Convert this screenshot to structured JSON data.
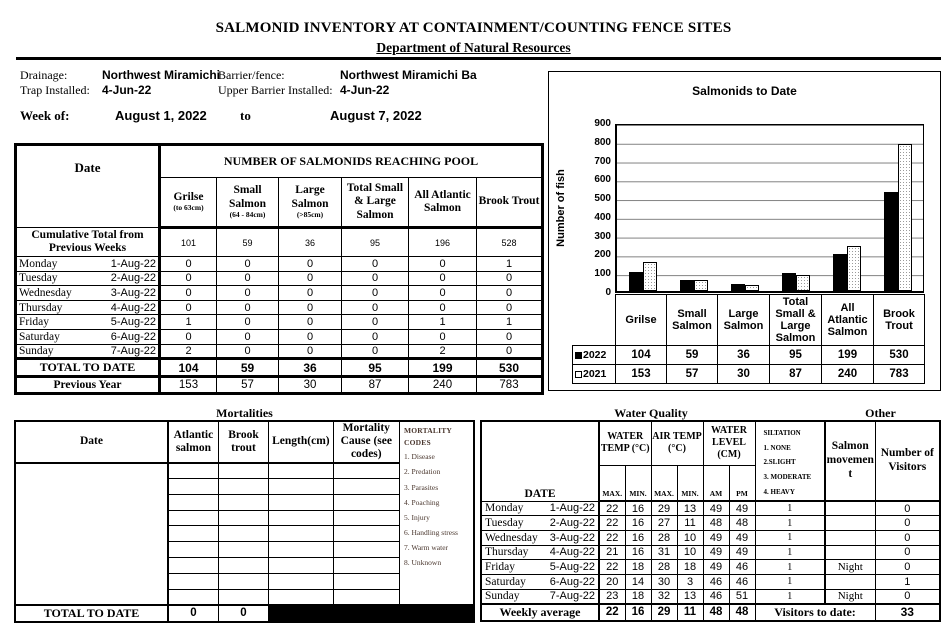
{
  "header": {
    "title": "SALMONID INVENTORY AT CONTAINMENT/COUNTING FENCE SITES",
    "subtitle": "Department of Natural Resources"
  },
  "info": {
    "drainage_label": "Drainage:",
    "drainage_value": "Northwest Miramichi",
    "barrier_label": "Barrier/fence:",
    "barrier_value": "Northwest Miramichi Ba",
    "trap_label": "Trap Installed:",
    "trap_value": "4-Jun-22",
    "upper_barrier_label": "Upper Barrier Installed:",
    "upper_barrier_value": "4-Jun-22",
    "week_label": "Week of:",
    "week_start": "August 1, 2022",
    "week_to": "to",
    "week_end": "August 7, 2022"
  },
  "pool_table": {
    "date_header": "Date",
    "span_header": "NUMBER OF SALMONIDS REACHING POOL",
    "columns": [
      {
        "name": "Grilse",
        "sub": "(to 63cm)"
      },
      {
        "name": "Small Salmon",
        "sub": "(64 - 84cm)"
      },
      {
        "name": "Large Salmon",
        "sub": "(>85cm)"
      },
      {
        "name": "Total Small & Large Salmon",
        "sub": ""
      },
      {
        "name": "All Atlantic Salmon",
        "sub": ""
      },
      {
        "name": "Brook Trout",
        "sub": ""
      }
    ],
    "cumulative_label": "Cumulative Total from Previous Weeks",
    "cumulative_values": [
      "101",
      "59",
      "36",
      "95",
      "196",
      "528"
    ],
    "days": [
      {
        "day": "Monday",
        "date": "1-Aug-22",
        "values": [
          "0",
          "0",
          "0",
          "0",
          "0",
          "1"
        ]
      },
      {
        "day": "Tuesday",
        "date": "2-Aug-22",
        "values": [
          "0",
          "0",
          "0",
          "0",
          "0",
          "0"
        ]
      },
      {
        "day": "Wednesday",
        "date": "3-Aug-22",
        "values": [
          "0",
          "0",
          "0",
          "0",
          "0",
          "0"
        ]
      },
      {
        "day": "Thursday",
        "date": "4-Aug-22",
        "values": [
          "0",
          "0",
          "0",
          "0",
          "0",
          "0"
        ]
      },
      {
        "day": "Friday",
        "date": "5-Aug-22",
        "values": [
          "1",
          "0",
          "0",
          "0",
          "1",
          "1"
        ]
      },
      {
        "day": "Saturday",
        "date": "6-Aug-22",
        "values": [
          "0",
          "0",
          "0",
          "0",
          "0",
          "0"
        ]
      },
      {
        "day": "Sunday",
        "date": "7-Aug-22",
        "values": [
          "2",
          "0",
          "0",
          "0",
          "2",
          "0"
        ]
      }
    ],
    "total_label": "TOTAL TO DATE",
    "total_values": [
      "104",
      "59",
      "36",
      "95",
      "199",
      "530"
    ],
    "previous_label": "Previous Year",
    "previous_values": [
      "153",
      "57",
      "30",
      "87",
      "240",
      "783"
    ]
  },
  "chart_data": {
    "type": "bar",
    "title": "Salmonids to Date",
    "ylabel": "Number of fish",
    "ylim": [
      0,
      900
    ],
    "ytick_step": 100,
    "grid": true,
    "legend_position": "table-below",
    "categories": [
      "Grilse",
      "Small Salmon",
      "Large Salmon",
      "Total Small & Large Salmon",
      "All Atlantic Salmon",
      "Brook Trout"
    ],
    "series": [
      {
        "name": "2022",
        "style": "solid-black",
        "values": [
          104,
          59,
          36,
          95,
          199,
          530
        ]
      },
      {
        "name": "2021",
        "style": "dotted-white",
        "values": [
          153,
          57,
          30,
          87,
          240,
          783
        ]
      }
    ]
  },
  "mortalities": {
    "title": "Mortalities",
    "date_header": "Date",
    "col_headers": [
      "Atlantic salmon",
      "Brook trout",
      "Length(cm)",
      "Mortality Cause (see codes)"
    ],
    "codes_title": "MORTALITY CODES",
    "codes": [
      "1. Disease",
      "2. Predation",
      "3. Parasites",
      "4. Poaching",
      "5. Injury",
      "6. Handling stress",
      "7. Warm water",
      "8. Unknown"
    ],
    "empty_rows": 9,
    "total_label": "TOTAL TO DATE",
    "total_values": [
      "0",
      "0"
    ]
  },
  "water_quality": {
    "title": "Water Quality",
    "other_title": "Other",
    "date_header": "DATE",
    "water_temp_header": "WATER TEMP (°C)",
    "air_temp_header": "AIR TEMP (°C)",
    "water_level_header": "WATER LEVEL (CM)",
    "sub_headers": [
      "MAX.",
      "MIN.",
      "MAX.",
      "MIN.",
      "AM",
      "PM"
    ],
    "siltation_lines": [
      "SILTATION",
      "1. NONE",
      "2.SLIGHT",
      "3. MODERATE",
      "4. HEAVY"
    ],
    "movement_header": "Salmon movement",
    "visitors_header": "Number of Visitors",
    "rows": [
      {
        "day": "Monday",
        "date": "1-Aug-22",
        "values": [
          "22",
          "16",
          "29",
          "13",
          "49",
          "49"
        ],
        "siltation": "1",
        "movement": "",
        "visitors": "0"
      },
      {
        "day": "Tuesday",
        "date": "2-Aug-22",
        "values": [
          "22",
          "16",
          "27",
          "11",
          "48",
          "48"
        ],
        "siltation": "1",
        "movement": "",
        "visitors": "0"
      },
      {
        "day": "Wednesday",
        "date": "3-Aug-22",
        "values": [
          "22",
          "16",
          "28",
          "10",
          "49",
          "49"
        ],
        "siltation": "1",
        "movement": "",
        "visitors": "0"
      },
      {
        "day": "Thursday",
        "date": "4-Aug-22",
        "values": [
          "21",
          "16",
          "31",
          "10",
          "49",
          "49"
        ],
        "siltation": "1",
        "movement": "",
        "visitors": "0"
      },
      {
        "day": "Friday",
        "date": "5-Aug-22",
        "values": [
          "22",
          "18",
          "28",
          "18",
          "49",
          "46"
        ],
        "siltation": "1",
        "movement": "Night",
        "visitors": "0"
      },
      {
        "day": "Saturday",
        "date": "6-Aug-22",
        "values": [
          "20",
          "14",
          "30",
          "3",
          "46",
          "46"
        ],
        "siltation": "1",
        "movement": "",
        "visitors": "1"
      },
      {
        "day": "Sunday",
        "date": "7-Aug-22",
        "values": [
          "23",
          "18",
          "32",
          "13",
          "46",
          "51"
        ],
        "siltation": "1",
        "movement": "Night",
        "visitors": "0"
      }
    ],
    "weekly_label": "Weekly average",
    "weekly_values": [
      "22",
      "16",
      "29",
      "11",
      "48",
      "48"
    ],
    "visitors_to_date_label": "Visitors to date:",
    "visitors_to_date": "33"
  },
  "colors": {
    "text": "#000000",
    "gridline": "#808080",
    "codes_text": "#4a372e",
    "bar_2022": "#000000",
    "bar_2021": "#ffffff"
  }
}
